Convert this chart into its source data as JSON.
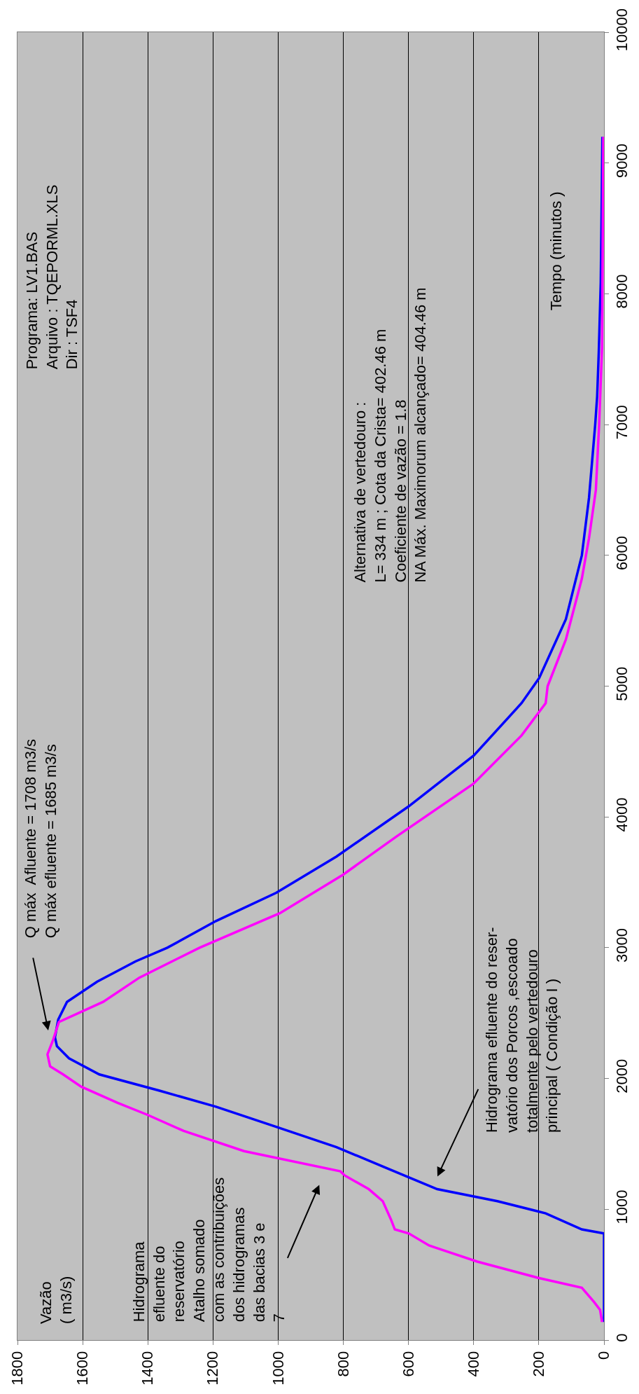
{
  "chart_data": {
    "type": "line",
    "ylabel": "Tempo (minutos )",
    "ylim": [
      0,
      10000
    ],
    "yticks": [
      0,
      1000,
      2000,
      3000,
      4000,
      5000,
      6000,
      7000,
      8000,
      9000,
      10000
    ],
    "xlim": [
      1800,
      0
    ],
    "xticks": [
      0,
      200,
      400,
      600,
      800,
      1000,
      1200,
      1400,
      1600,
      1800
    ],
    "grid": "x",
    "line_style": "solid",
    "series": [
      {
        "color": "#0000ff",
        "values": [
          138,
          815,
          846,
          969,
          1062,
          1154,
          1321,
          1475,
          1630,
          1784,
          1907,
          2031,
          2154,
          2247,
          2315,
          2450,
          2586,
          2740,
          2895,
          3000,
          3204,
          3420,
          3697,
          4080,
          4469,
          4870,
          5062,
          5512,
          6000,
          6440,
          7000,
          7216,
          7557,
          8085,
          8500,
          9200
        ],
        "x": [
          0,
          0,
          68,
          179,
          327,
          512,
          673,
          821,
          1006,
          1191,
          1364,
          1549,
          1642,
          1679,
          1685,
          1675,
          1648,
          1556,
          1438,
          1340,
          1191,
          1006,
          821,
          600,
          400,
          253,
          199,
          117,
          68,
          46,
          27,
          21,
          16,
          10,
          8,
          5
        ]
      },
      {
        "color": "#ff00ff",
        "values": [
          138,
          231,
          292,
          400,
          477,
          600,
          723,
          815,
          846,
          923,
          1062,
          1154,
          1259,
          1290,
          1445,
          1599,
          1722,
          1815,
          1938,
          2031,
          2093,
          2185,
          2300,
          2432,
          2586,
          2771,
          3000,
          3265,
          3558,
          3852,
          4253,
          4623,
          4870,
          5000,
          5357,
          5822,
          6131,
          6500,
          7000,
          7590,
          9200
        ],
        "x": [
          6,
          12,
          31,
          68,
          204,
          389,
          537,
          599,
          642,
          654,
          679,
          722,
          796,
          809,
          1105,
          1290,
          1401,
          1494,
          1605,
          1660,
          1700,
          1708,
          1690,
          1673,
          1537,
          1426,
          1241,
          994,
          801,
          636,
          401,
          253,
          179,
          173,
          117,
          68,
          46,
          25,
          15,
          6,
          2
        ]
      }
    ],
    "annotations": [
      "Q máx  Afluente = 1708 m3/s\nQ máx efluente = 1685 m3/s",
      "Hidrograma\nefluente do\nreservatório\nAtalho somado\ncom as contribuições\ndos hidrogramas\ndas bacias 3 e\n7",
      "Hidrograma efluente do reser-\nvatório dos Porcos ,escoado\ntotalmente pelo vertedouro\nprincipal ( Condição I )",
      "Programa: LV1.BAS\nArquivo : TQEPORML.XLS\nDir : TSF4",
      "Alternativa de vertedouro :\nL= 334 m ; Cota da Crista= 402.46 m\nCoeficiente de vazão = 1.8\nNA Máx. Maximorum alcançado= 404.46 m",
      "Vazão\n( m3/s)"
    ]
  }
}
